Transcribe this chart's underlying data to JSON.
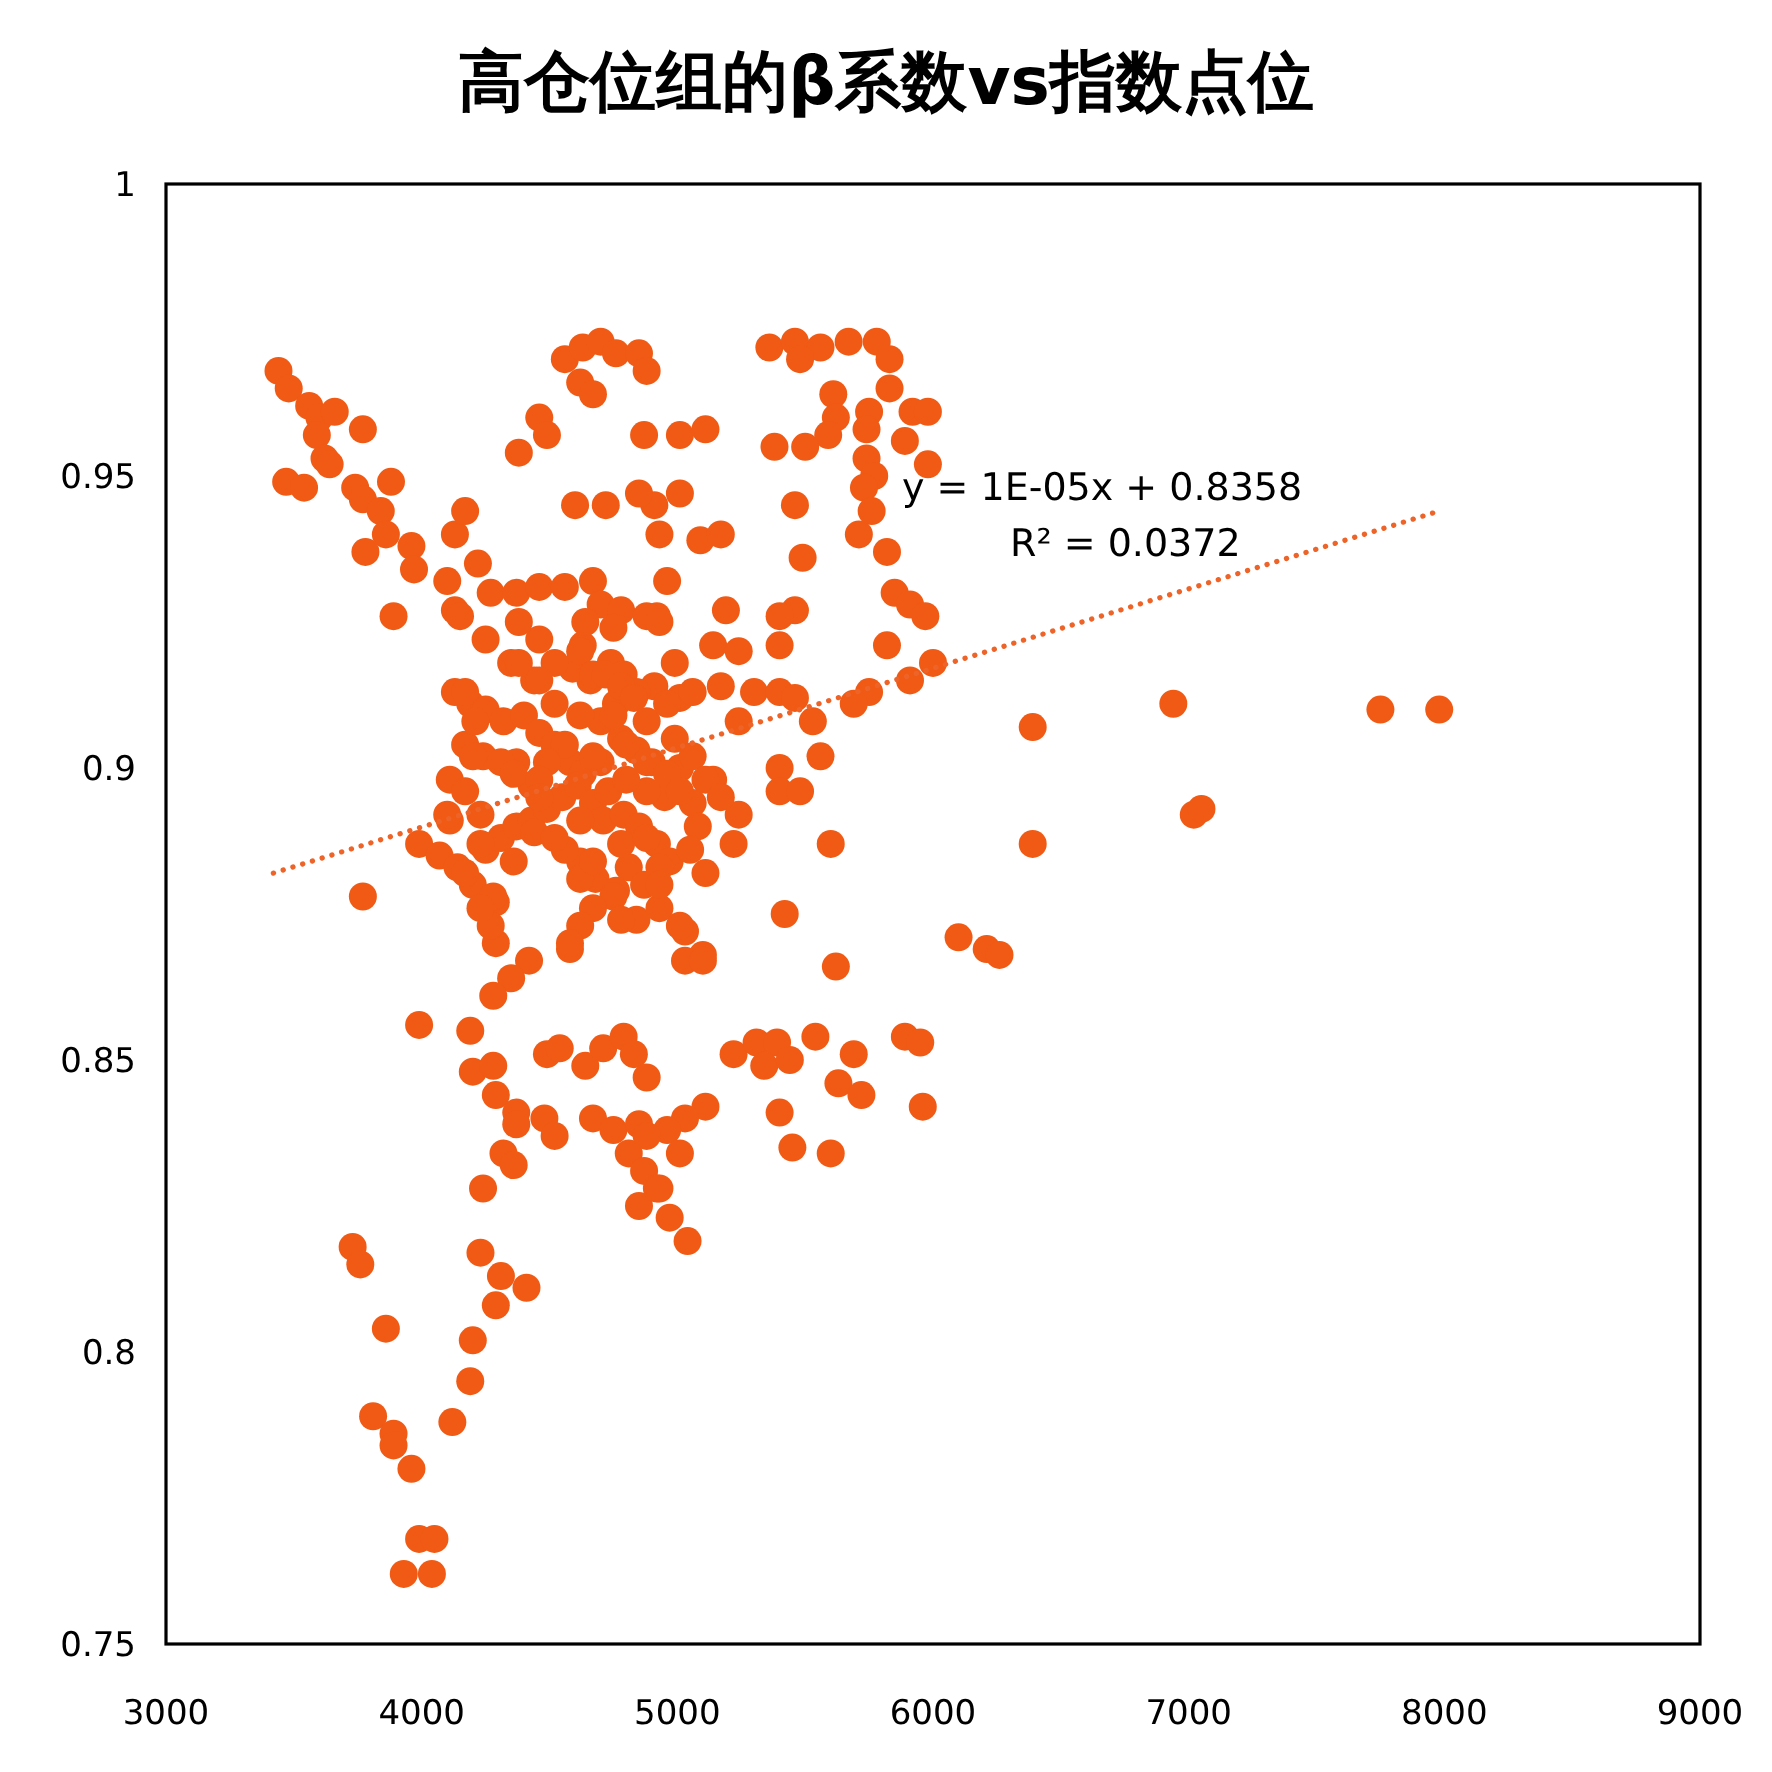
{
  "chart_data": {
    "type": "scatter",
    "title": "高仓位组的β系数vs指数点位",
    "xlim": [
      3000,
      9000
    ],
    "ylim": [
      0.75,
      1
    ],
    "xticks": [
      3000,
      4000,
      5000,
      6000,
      7000,
      8000,
      9000
    ],
    "yticks": [
      0.75,
      0.8,
      0.85,
      0.9,
      0.95,
      1
    ],
    "annotations": [
      "y = 1E-05x + 0.8358",
      "R² = 0.0372"
    ],
    "series": [
      {
        "color": "#f05a14",
        "marker": "circle",
        "x": [
          3440,
          3480,
          3560,
          3600,
          3660,
          3770,
          3590,
          3620,
          3470,
          3540,
          3640,
          3740,
          3880,
          3770,
          3840,
          3860,
          3780,
          3960,
          3970,
          3890,
          4100,
          4130,
          4220,
          4130,
          4170,
          4250,
          4380,
          4460,
          4490,
          4560,
          4630,
          4700,
          4760,
          4620,
          4670,
          4850,
          4880,
          4870,
          4600,
          4720,
          4910,
          4270,
          4370,
          4460,
          4560,
          4670,
          5360,
          5460,
          5560,
          5670,
          5780,
          5830,
          5480,
          5610,
          5620,
          5590,
          5500,
          5380,
          5830,
          5920,
          5980,
          5750,
          5740,
          5890,
          5740,
          5770,
          5730,
          5760,
          5980,
          5710,
          5820,
          5850,
          5910,
          5970,
          5460,
          5490,
          5460,
          5400,
          5820,
          6000,
          5910,
          5750,
          5690,
          6390,
          6390,
          5010,
          5110,
          4850,
          5010,
          4930,
          5090,
          5170,
          4960,
          4920,
          5190,
          5140,
          5240,
          4990,
          5400,
          5170,
          5300,
          5400,
          5460,
          5530,
          5010,
          5240,
          4910,
          5560,
          5400,
          5400,
          5480,
          5010,
          5140,
          5240,
          5220,
          5110,
          5600,
          5420,
          5030,
          5100,
          6100,
          6210,
          6260,
          6940,
          7750,
          7980,
          7020,
          7050,
          4290,
          4420,
          4350,
          4280,
          4580,
          3990,
          4190,
          4200,
          4280,
          4290,
          4370,
          4370,
          4480,
          4520,
          4490,
          4540,
          4320,
          4360,
          4240,
          4640,
          4710,
          4790,
          4830,
          4880,
          4670,
          4750,
          4850,
          4810,
          4870,
          4850,
          4920,
          3730,
          3760,
          4230,
          4310,
          4410,
          4290,
          3860,
          4200,
          4190,
          3810,
          3890,
          3890,
          3960,
          4120,
          3990,
          4050,
          3930,
          4040,
          5030,
          5100,
          5620,
          5220,
          5310,
          5390,
          5340,
          5440,
          5540,
          5690,
          5890,
          5950,
          5630,
          5720,
          5960,
          5400,
          5450,
          5600,
          5110,
          5030,
          4960,
          4880,
          5010,
          4930,
          4970,
          5040,
          4130,
          4190,
          4250,
          4320,
          4400,
          4460,
          4520,
          4580,
          4630,
          4700,
          4170,
          4240,
          4110,
          4170,
          4230,
          3990,
          4070,
          4140,
          4200,
          4250,
          4310,
          4370,
          4430,
          4490,
          4550,
          4610,
          4670,
          4710,
          4290,
          4270,
          4740,
          4790,
          4840,
          4760,
          4660,
          4700,
          4780,
          4840,
          4900,
          4730,
          4790,
          4850,
          4920,
          4970,
          4810,
          4870,
          4760,
          4680,
          4620,
          4560,
          4950,
          5060,
          5080,
          5050,
          4590,
          4630,
          4520,
          4440,
          4350,
          4460,
          4380,
          3770,
          4370,
          4430,
          4840,
          4930,
          4110,
          4150,
          4700,
          4780,
          4880,
          4930,
          4640,
          4750,
          4380,
          4460,
          4620,
          4670,
          4520,
          4620,
          4560,
          4670,
          4490,
          4170,
          4210,
          4200,
          4310,
          4360,
          4720,
          4780,
          4830,
          4750,
          4880,
          4960,
          5060,
          4800,
          4880,
          4990,
          5060,
          5110,
          5170,
          4960,
          5010,
          4880,
          4800,
          4460,
          4460,
          4440,
          4520,
          4100,
          4230,
          4170,
          4280,
          4230,
          4360,
          4620,
          4620,
          4670,
          4780,
          4880,
          4930,
          4930,
          4750,
          4670,
          4780,
          4620,
          4580,
          5010
        ],
        "values": [
          0.968,
          0.965,
          0.962,
          0.96,
          0.961,
          0.958,
          0.957,
          0.953,
          0.949,
          0.948,
          0.952,
          0.948,
          0.949,
          0.946,
          0.944,
          0.94,
          0.937,
          0.938,
          0.934,
          0.926,
          0.932,
          0.927,
          0.935,
          0.94,
          0.944,
          0.922,
          0.954,
          0.96,
          0.957,
          0.97,
          0.972,
          0.973,
          0.971,
          0.966,
          0.964,
          0.971,
          0.968,
          0.957,
          0.945,
          0.945,
          0.945,
          0.93,
          0.93,
          0.931,
          0.931,
          0.932,
          0.972,
          0.973,
          0.972,
          0.973,
          0.973,
          0.97,
          0.97,
          0.964,
          0.96,
          0.957,
          0.955,
          0.955,
          0.965,
          0.961,
          0.961,
          0.961,
          0.958,
          0.956,
          0.953,
          0.95,
          0.948,
          0.944,
          0.952,
          0.94,
          0.937,
          0.93,
          0.928,
          0.926,
          0.945,
          0.936,
          0.927,
          0.921,
          0.921,
          0.918,
          0.915,
          0.913,
          0.911,
          0.907,
          0.887,
          0.957,
          0.958,
          0.947,
          0.947,
          0.94,
          0.939,
          0.94,
          0.932,
          0.926,
          0.927,
          0.921,
          0.92,
          0.918,
          0.926,
          0.914,
          0.913,
          0.913,
          0.912,
          0.908,
          0.912,
          0.908,
          0.914,
          0.902,
          0.9,
          0.896,
          0.896,
          0.9,
          0.898,
          0.892,
          0.887,
          0.882,
          0.887,
          0.875,
          0.872,
          0.868,
          0.871,
          0.869,
          0.868,
          0.911,
          0.91,
          0.91,
          0.892,
          0.893,
          0.87,
          0.867,
          0.864,
          0.861,
          0.869,
          0.856,
          0.855,
          0.848,
          0.849,
          0.844,
          0.841,
          0.839,
          0.84,
          0.837,
          0.851,
          0.852,
          0.834,
          0.832,
          0.828,
          0.849,
          0.852,
          0.854,
          0.851,
          0.847,
          0.84,
          0.838,
          0.839,
          0.834,
          0.831,
          0.825,
          0.828,
          0.818,
          0.815,
          0.817,
          0.813,
          0.811,
          0.808,
          0.804,
          0.802,
          0.795,
          0.789,
          0.786,
          0.784,
          0.78,
          0.788,
          0.768,
          0.768,
          0.762,
          0.762,
          0.867,
          0.867,
          0.866,
          0.851,
          0.853,
          0.853,
          0.849,
          0.85,
          0.854,
          0.851,
          0.854,
          0.853,
          0.846,
          0.844,
          0.842,
          0.841,
          0.835,
          0.834,
          0.842,
          0.84,
          0.838,
          0.837,
          0.834,
          0.828,
          0.823,
          0.819,
          0.913,
          0.911,
          0.91,
          0.908,
          0.909,
          0.906,
          0.904,
          0.901,
          0.899,
          0.901,
          0.904,
          0.902,
          0.898,
          0.896,
          0.892,
          0.887,
          0.885,
          0.883,
          0.88,
          0.886,
          0.888,
          0.89,
          0.891,
          0.893,
          0.895,
          0.897,
          0.894,
          0.891,
          0.877,
          0.873,
          0.918,
          0.916,
          0.913,
          0.911,
          0.915,
          0.908,
          0.905,
          0.903,
          0.901,
          0.896,
          0.892,
          0.89,
          0.887,
          0.884,
          0.883,
          0.88,
          0.879,
          0.881,
          0.884,
          0.886,
          0.895,
          0.894,
          0.89,
          0.886,
          0.917,
          0.921,
          0.918,
          0.915,
          0.918,
          0.922,
          0.925,
          0.878,
          0.901,
          0.897,
          0.874,
          0.876,
          0.891,
          0.926,
          0.928,
          0.927,
          0.926,
          0.925,
          0.925,
          0.924,
          0.918,
          0.915,
          0.92,
          0.916,
          0.911,
          0.909,
          0.904,
          0.902,
          0.901,
          0.913,
          0.908,
          0.902,
          0.901,
          0.899,
          0.916,
          0.914,
          0.912,
          0.909,
          0.908,
          0.911,
          0.913,
          0.904,
          0.901,
          0.905,
          0.902,
          0.898,
          0.895,
          0.899,
          0.896,
          0.896,
          0.898,
          0.898,
          0.895,
          0.889,
          0.888,
          0.892,
          0.887,
          0.882,
          0.878,
          0.876,
          0.884,
          0.891,
          0.881,
          0.884,
          0.887,
          0.888,
          0.883,
          0.88,
          0.878,
          0.876,
          0.874,
          0.873,
          0.87,
          0.873
        ]
      },
      {
        "type": "line",
        "color": "#ee6428",
        "line_style": "dotted",
        "x": [
          3420,
          7980
        ],
        "values": [
          0.882,
          0.944
        ]
      }
    ]
  }
}
